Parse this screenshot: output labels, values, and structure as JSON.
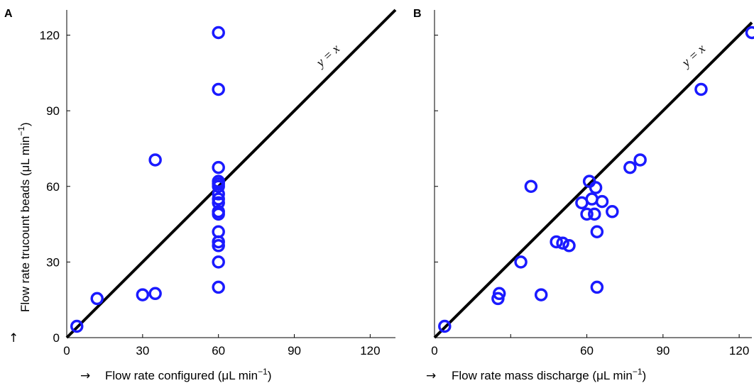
{
  "chart_data": [
    {
      "type": "scatter",
      "panel_label": "A",
      "xlabel": "Flow rate configured (μL min",
      "ylabel": "Flow rate trucount beads (μL min",
      "unit_exponent": "−1",
      "axis_arrow": "→",
      "y_arrow": "↑",
      "reference_label": "y = x",
      "xlim": [
        0,
        130
      ],
      "ylim": [
        0,
        130
      ],
      "xticks": [
        0,
        30,
        60,
        90,
        120
      ],
      "yticks": [
        0,
        30,
        60,
        90,
        120
      ],
      "marker_color": "#1a1aff",
      "line_color": "#000000",
      "points": [
        [
          4,
          4.5
        ],
        [
          12,
          15.5
        ],
        [
          30,
          17
        ],
        [
          35,
          17.5
        ],
        [
          35,
          70.5
        ],
        [
          60,
          121
        ],
        [
          60,
          98.5
        ],
        [
          60,
          67.5
        ],
        [
          60,
          62
        ],
        [
          60,
          61
        ],
        [
          60,
          60
        ],
        [
          60,
          57
        ],
        [
          60,
          55
        ],
        [
          60,
          53.5
        ],
        [
          60,
          50
        ],
        [
          60,
          49
        ],
        [
          60,
          42
        ],
        [
          60,
          38
        ],
        [
          60,
          36.5
        ],
        [
          60,
          30
        ],
        [
          60,
          20
        ]
      ]
    },
    {
      "type": "scatter",
      "panel_label": "B",
      "xlabel": "Flow rate mass discharge (μL min",
      "ylabel": "",
      "unit_exponent": "−1",
      "axis_arrow": "→",
      "reference_label": "y = x",
      "xlim": [
        0,
        125
      ],
      "ylim": [
        0,
        130
      ],
      "xticks": [
        0,
        60,
        90,
        120
      ],
      "minor_xticks": [
        30
      ],
      "yticks": [
        0,
        30,
        60,
        90,
        120
      ],
      "marker_color": "#1a1aff",
      "line_color": "#000000",
      "points": [
        [
          4,
          4.5
        ],
        [
          25,
          15.5
        ],
        [
          25.5,
          17.5
        ],
        [
          34,
          30
        ],
        [
          38,
          60
        ],
        [
          42,
          17
        ],
        [
          48,
          38
        ],
        [
          50.5,
          37.5
        ],
        [
          53,
          36.5
        ],
        [
          58,
          53.5
        ],
        [
          60,
          49
        ],
        [
          61,
          62
        ],
        [
          62,
          55
        ],
        [
          63,
          49
        ],
        [
          63.5,
          59.5
        ],
        [
          64,
          42
        ],
        [
          64,
          20
        ],
        [
          66,
          54
        ],
        [
          70,
          50
        ],
        [
          77,
          67.5
        ],
        [
          81,
          70.5
        ],
        [
          105,
          98.5
        ],
        [
          125,
          121
        ]
      ]
    }
  ]
}
